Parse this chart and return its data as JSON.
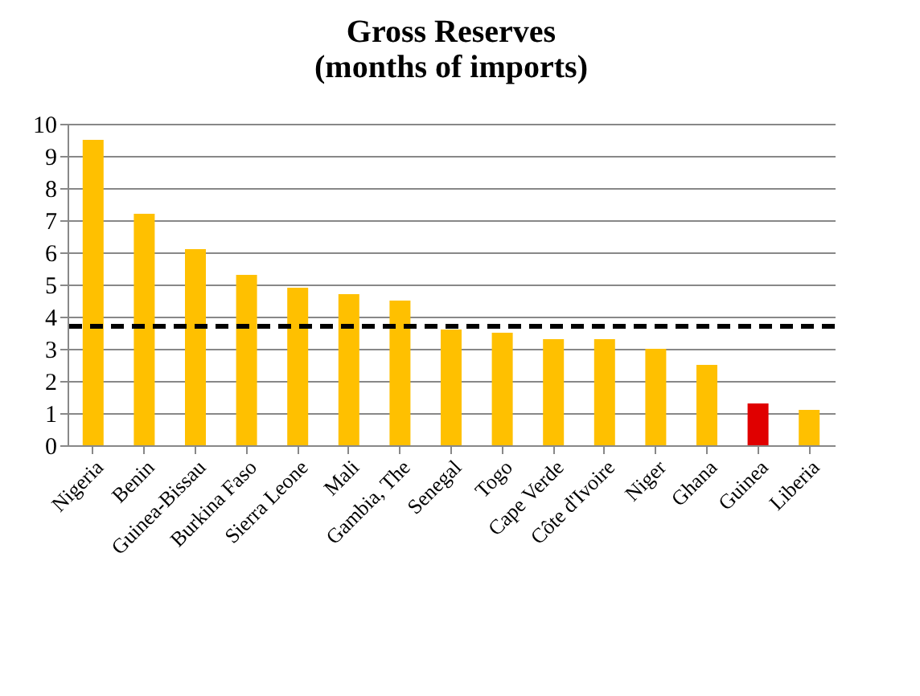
{
  "chart_data": {
    "type": "bar",
    "title": "Gross Reserves\n(months of imports)",
    "categories": [
      "Nigeria",
      "Benin",
      "Guinea-Bissau",
      "Burkina Faso",
      "Sierra Leone",
      "Mali",
      "Gambia, The",
      "Senegal",
      "Togo",
      "Cape Verde",
      "Côte d'Ivoire",
      "Niger",
      "Ghana",
      "Guinea",
      "Liberia"
    ],
    "values": [
      9.5,
      7.2,
      6.1,
      5.3,
      4.9,
      4.7,
      4.5,
      3.6,
      3.5,
      3.3,
      3.3,
      3.0,
      2.5,
      1.3,
      1.1
    ],
    "colors": [
      "#ffc000",
      "#ffc000",
      "#ffc000",
      "#ffc000",
      "#ffc000",
      "#ffc000",
      "#ffc000",
      "#ffc000",
      "#ffc000",
      "#ffc000",
      "#ffc000",
      "#ffc000",
      "#ffc000",
      "#e00000",
      "#ffc000"
    ],
    "ylim": [
      0,
      10
    ],
    "yticks": [
      0,
      1,
      2,
      3,
      4,
      5,
      6,
      7,
      8,
      9,
      10
    ],
    "grid": "y",
    "ref_lines": [
      {
        "axis": "y",
        "value": 3.7,
        "color": "#000000",
        "line_style": "dashed"
      }
    ]
  }
}
